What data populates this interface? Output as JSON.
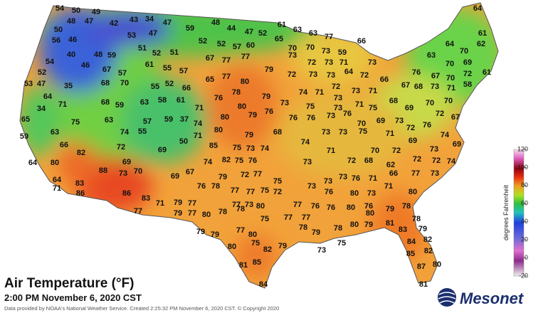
{
  "title": "Air Temperature (°F)",
  "timestamp": "2:00 PM November 6, 2020 CST",
  "credit": "Data provided by NOAA's National Weather Service. Created 2:25:32 PM November 6, 2020 CST. © Copyright 2020",
  "logo": "Mesonet",
  "colorbar": {
    "label": "degrees Fahrenheit",
    "lim": [
      -20,
      120
    ],
    "ticks": [
      120,
      100,
      80,
      60,
      40,
      20,
      0,
      -20
    ]
  },
  "readings": [
    54,
    50,
    49,
    48,
    47,
    42,
    43,
    34,
    47,
    48,
    44,
    47,
    52,
    61,
    63,
    63,
    77,
    64,
    50,
    53,
    47,
    59,
    61,
    56,
    46,
    40,
    48,
    59,
    51,
    52,
    51,
    52,
    52,
    57,
    60,
    65,
    70,
    70,
    73,
    59,
    66,
    64,
    70,
    62,
    54,
    67,
    77,
    77,
    79,
    73,
    72,
    73,
    71,
    73,
    63,
    70,
    69,
    52,
    46,
    67,
    57,
    61,
    55,
    57,
    65,
    77,
    80,
    72,
    73,
    73,
    64,
    72,
    66,
    76,
    67,
    70,
    72,
    61,
    53,
    47,
    35,
    68,
    70,
    55,
    52,
    66,
    76,
    78,
    79,
    74,
    71,
    72,
    73,
    73,
    71,
    67,
    68,
    73,
    71,
    58,
    64,
    34,
    71,
    68,
    59,
    63,
    58,
    61,
    71,
    80,
    79,
    76,
    73,
    75,
    73,
    71,
    75,
    68,
    69,
    70,
    70,
    72,
    67,
    65,
    75,
    63,
    57,
    59,
    37,
    74,
    80,
    76,
    76,
    73,
    76,
    70,
    69,
    73,
    76,
    63,
    74,
    55,
    71,
    80,
    79,
    68,
    74,
    73,
    73,
    75,
    71,
    72,
    74,
    59,
    66,
    50,
    85,
    75,
    73,
    74,
    71,
    70,
    72,
    69,
    73,
    69,
    82,
    72,
    69,
    74,
    82,
    75,
    76,
    73,
    72,
    68,
    62,
    72,
    72,
    74,
    64,
    80,
    69,
    88,
    73,
    70,
    69,
    67,
    79,
    72,
    77,
    75,
    73,
    73,
    76,
    71,
    66,
    77,
    73,
    64,
    83,
    71,
    86,
    76,
    78,
    77,
    77,
    75,
    72,
    73,
    76,
    80,
    73,
    71,
    80,
    86,
    83,
    71,
    79,
    77,
    77,
    73,
    80,
    77,
    76,
    76,
    80,
    76,
    79,
    78,
    77,
    79,
    77,
    80,
    78,
    78,
    75,
    77,
    77,
    80,
    80,
    79,
    81,
    78,
    78,
    79,
    78,
    83,
    79,
    79,
    79,
    77,
    80,
    75,
    82,
    79,
    73,
    75,
    80,
    84,
    82,
    85,
    82,
    87,
    80,
    81,
    85,
    84,
    81
  ]
}
